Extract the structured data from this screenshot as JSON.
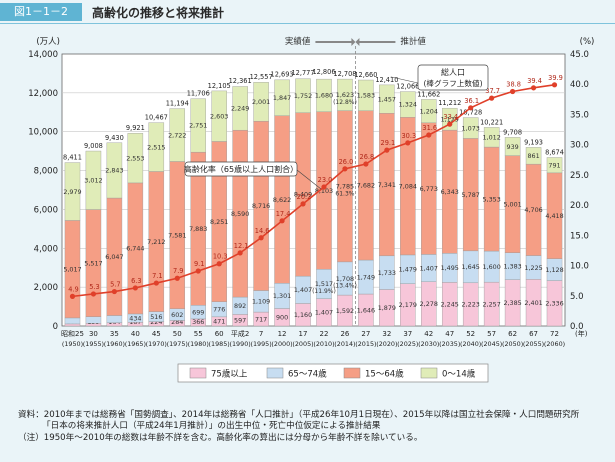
{
  "header": {
    "figure_number": "図1－1－2",
    "title": "高齢化の推移と将来推計"
  },
  "chart_data": {
    "type": "stacked-bar+line",
    "title": "高齢化の推移と将来推計",
    "y_left": {
      "unit": "(万人)",
      "min": 0,
      "max": 14000,
      "ticks": [
        "0",
        "2,000",
        "4,000",
        "6,000",
        "8,000",
        "10,000",
        "12,000",
        "14,000"
      ]
    },
    "y_right": {
      "unit": "(%)",
      "min": 0,
      "max": 45,
      "ticks": [
        "0.0",
        "5.0",
        "10.0",
        "15.0",
        "20.0",
        "25.0",
        "30.0",
        "35.0",
        "40.0",
        "45.0"
      ]
    },
    "x_unit": "(年)",
    "categories": [
      {
        "top": "昭和25",
        "bottom": "(1950)"
      },
      {
        "top": "30",
        "bottom": "(1955)"
      },
      {
        "top": "35",
        "bottom": "(1960)"
      },
      {
        "top": "40",
        "bottom": "(1965)"
      },
      {
        "top": "45",
        "bottom": "(1970)"
      },
      {
        "top": "50",
        "bottom": "(1975)"
      },
      {
        "top": "55",
        "bottom": "(1980)"
      },
      {
        "top": "60",
        "bottom": "(1985)"
      },
      {
        "top": "平成2",
        "bottom": "(1990)"
      },
      {
        "top": "7",
        "bottom": "(1995)"
      },
      {
        "top": "12",
        "bottom": "(2000)"
      },
      {
        "top": "17",
        "bottom": "(2005)"
      },
      {
        "top": "22",
        "bottom": "(2010)"
      },
      {
        "top": "26",
        "bottom": "(2014)"
      },
      {
        "top": "27",
        "bottom": "(2015)"
      },
      {
        "top": "32",
        "bottom": "(2020)"
      },
      {
        "top": "37",
        "bottom": "(2025)"
      },
      {
        "top": "42",
        "bottom": "(2030)"
      },
      {
        "top": "47",
        "bottom": "(2035)"
      },
      {
        "top": "52",
        "bottom": "(2040)"
      },
      {
        "top": "57",
        "bottom": "(2045)"
      },
      {
        "top": "62",
        "bottom": "(2050)"
      },
      {
        "top": "67",
        "bottom": "(2055)"
      },
      {
        "top": "72",
        "bottom": "(2060)"
      }
    ],
    "series": [
      {
        "name": "75歳以上",
        "color": "#f7c6d9",
        "values": [
          107,
          139,
          164,
          187,
          224,
          284,
          366,
          471,
          597,
          717,
          900,
          1160,
          1407,
          1592,
          1646,
          1879,
          2179,
          2278,
          2245,
          2223,
          2257,
          2385,
          2401,
          2336
        ],
        "labels": [
          "107",
          "139",
          "164",
          "187",
          "224",
          "284",
          "366",
          "471",
          "597",
          "717",
          "900",
          "1,160",
          "1,407",
          "1,592",
          "1,646",
          "1,879",
          "2,179",
          "2,278",
          "2,245",
          "2,223",
          "2,257",
          "2,385",
          "2,401",
          "2,336"
        ]
      },
      {
        "name": "65～74歳",
        "color": "#c7ddf1",
        "values": [
          309,
          338,
          376,
          434,
          516,
          602,
          699,
          776,
          892,
          1109,
          1301,
          1407,
          1517,
          1708,
          1749,
          1733,
          1479,
          1407,
          1495,
          1645,
          1600,
          1383,
          1225,
          1128
        ],
        "labels": [
          "309",
          "338",
          "376",
          "434",
          "516",
          "602",
          "699",
          "776",
          "892",
          "1,109",
          "1,301",
          "1,407",
          "1,517",
          "1,708",
          "1,749",
          "1,733",
          "1,479",
          "1,407",
          "1,495",
          "1,645",
          "1,600",
          "1,383",
          "1,225",
          "1,128"
        ],
        "extra_labels": {
          "12": "(11.9%)",
          "13": "(13.4%)"
        }
      },
      {
        "name": "15～64歳",
        "color": "#f59e85",
        "values": [
          5017,
          5517,
          6047,
          6744,
          7212,
          7581,
          7883,
          8251,
          8590,
          8716,
          8622,
          8409,
          8103,
          7785,
          7682,
          7341,
          7084,
          6773,
          6343,
          5787,
          5353,
          5001,
          4706,
          4418
        ],
        "labels": [
          "5,017",
          "5,517",
          "6,047",
          "6,744",
          "7,212",
          "7,581",
          "7,883",
          "8,251",
          "8,590",
          "8,716",
          "8,622",
          "8,409",
          "8,103",
          "7,785",
          "7,682",
          "7,341",
          "7,084",
          "6,773",
          "6,343",
          "5,787",
          "5,353",
          "5,001",
          "4,706",
          "4,418"
        ],
        "extra_labels": {
          "13": "61.3%"
        }
      },
      {
        "name": "0～14歳",
        "color": "#e0ecb8",
        "values": [
          2979,
          3012,
          2843,
          2553,
          2515,
          2722,
          2751,
          2603,
          2249,
          2001,
          1847,
          1752,
          1680,
          1623,
          1583,
          1457,
          1324,
          1204,
          1129,
          1073,
          1012,
          939,
          861,
          791
        ],
        "labels": [
          "2,979",
          "3,012",
          "2,843",
          "2,553",
          "2,515",
          "2,722",
          "2,751",
          "2,603",
          "2,249",
          "2,001",
          "1,847",
          "1,752",
          "1,680",
          "1,623",
          "1,583",
          "1,457",
          "1,324",
          "1,204",
          "1,129",
          "1,073",
          "1,012",
          "939",
          "861",
          "791"
        ],
        "extra_labels": {
          "13": "(12.8%)"
        }
      }
    ],
    "totals": [
      "8,411",
      "9,008",
      "9,430",
      "9,921",
      "10,467",
      "11,194",
      "11,706",
      "12,105",
      "12,361",
      "12,557",
      "12,693",
      "12,777",
      "12,806",
      "12,708",
      "12,660",
      "12,410",
      "12,066",
      "11,662",
      "11,212",
      "10,728",
      "10,221",
      "9,708",
      "9,193",
      "8,674"
    ],
    "totals_values": [
      8411,
      9008,
      9430,
      9921,
      10467,
      11194,
      11706,
      12105,
      12361,
      12557,
      12693,
      12777,
      12806,
      12708,
      12660,
      12410,
      12066,
      11662,
      11212,
      10728,
      10221,
      9708,
      9193,
      8674
    ],
    "aging_rate": {
      "name": "高齢化率（65歳以上人口割合）",
      "color": "#e0402a",
      "values": [
        4.9,
        5.3,
        5.7,
        6.3,
        7.1,
        7.9,
        9.1,
        10.3,
        12.1,
        14.6,
        17.4,
        20.2,
        23.0,
        26.0,
        26.8,
        29.1,
        30.3,
        31.6,
        33.4,
        36.1,
        37.7,
        38.8,
        39.4,
        39.9
      ],
      "labels": [
        "4.9",
        "5.3",
        "5.7",
        "6.3",
        "7.1",
        "7.9",
        "9.1",
        "10.3",
        "12.1",
        "14.6",
        "17.4",
        "20.2",
        "23.0",
        "26.0",
        "26.8",
        "29.1",
        "30.3",
        "31.6",
        "33.4",
        "36.1",
        "37.7",
        "38.8",
        "39.4",
        "39.9"
      ]
    },
    "annotations": {
      "actual": "実績値",
      "projection": "推計値",
      "total_callout_line1": "総人口",
      "total_callout_line2": "(棒グラフ上数値)"
    },
    "legend": [
      "75歳以上",
      "65～74歳",
      "15～64歳",
      "0～14歳"
    ],
    "legend_position": "bottom"
  },
  "notes": [
    "資料：2010年までは総務省「国勢調査」、2014年は総務省「人口推計」（平成26年10月1日現在）、2015年以降は国立社会保障・人口問題研究所",
    "「日本の将来推計人口（平成24年1月推計）」の出生中位・死亡中位仮定による推計結果",
    "（注）1950年～2010年の総数は年齢不詳を含む。高齢化率の算出には分母から年齢不詳を除いている。"
  ]
}
